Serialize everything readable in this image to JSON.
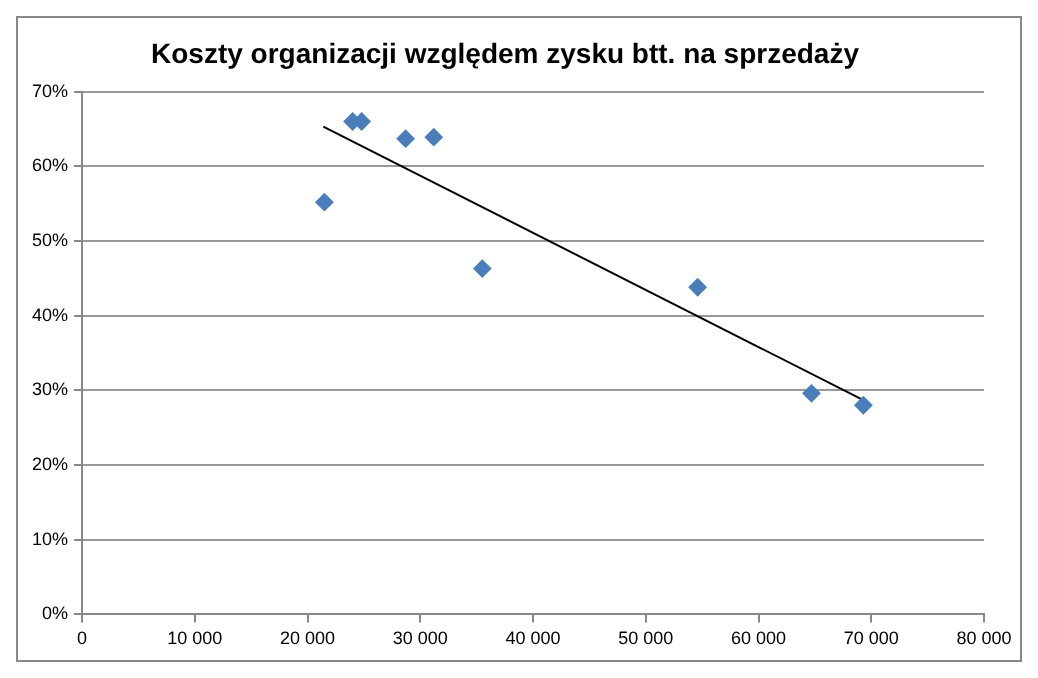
{
  "chart_data": {
    "type": "scatter",
    "title": "Koszty organizacji względem zysku btt. na sprzedaży",
    "series": [
      {
        "marker": "diamond",
        "color": "#4a7ebb",
        "x": [
          21500,
          24000,
          24800,
          28700,
          31200,
          35500,
          54600,
          64700,
          69300
        ],
        "values": [
          55.2,
          66.0,
          66.0,
          63.7,
          63.9,
          46.3,
          43.8,
          29.6,
          28.0
        ]
      },
      {
        "type": "line",
        "marker": "none",
        "color": "#000000",
        "x": [
          21400,
          69300
        ],
        "values": [
          65.3,
          28.7
        ]
      }
    ],
    "xlim": [
      0,
      80000
    ],
    "xticks": [
      0,
      {
        "value": 10000,
        "label": "10 000"
      },
      {
        "value": 20000,
        "label": "20 000"
      },
      {
        "value": 30000,
        "label": "30 000"
      },
      {
        "value": 40000,
        "label": "40 000"
      },
      {
        "value": 50000,
        "label": "50 000"
      },
      {
        "value": 60000,
        "label": "60 000"
      },
      {
        "value": 70000,
        "label": "70 000"
      },
      {
        "value": 80000,
        "label": "80 000"
      }
    ],
    "ylim": [
      0,
      70
    ],
    "yticks": [
      {
        "value": 0,
        "label": "0%"
      },
      {
        "value": 10,
        "label": "10%"
      },
      {
        "value": 20,
        "label": "20%"
      },
      {
        "value": 30,
        "label": "30%"
      },
      {
        "value": 40,
        "label": "40%"
      },
      {
        "value": 50,
        "label": "50%"
      },
      {
        "value": 60,
        "label": "60%"
      },
      {
        "value": 70,
        "label": "70%"
      }
    ],
    "grid": "y",
    "legend": false
  }
}
